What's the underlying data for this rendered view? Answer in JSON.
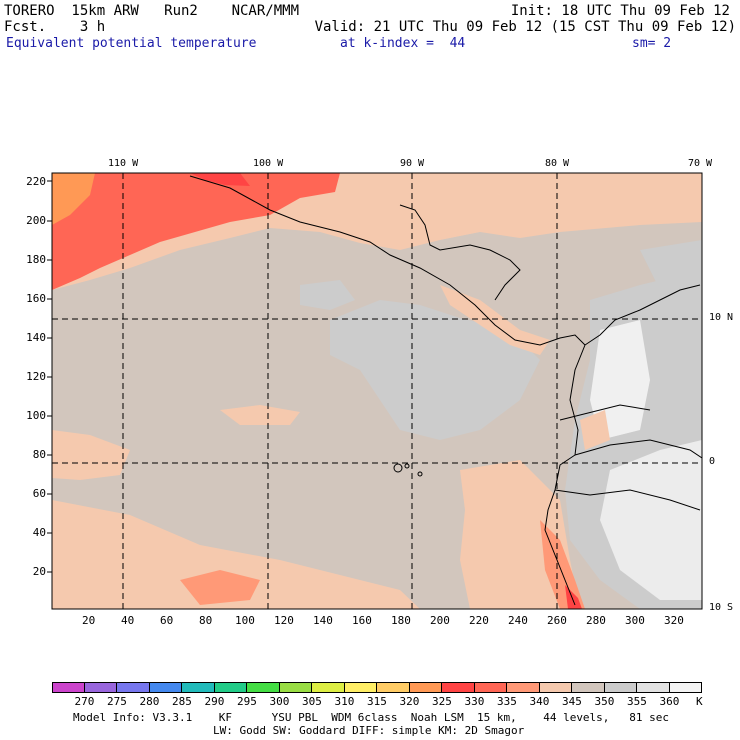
{
  "header": {
    "model": "TORERO  15km ARW   Run2    NCAR/MMM",
    "init": "Init: 18 UTC Thu 09 Feb 12",
    "fcst": "Fcst.    3 h",
    "valid": "Valid: 21 UTC Thu 09 Feb 12 (15 CST Thu 09 Feb 12)",
    "field": "Equivalent potential temperature",
    "level": "at k-index =  44",
    "sm": "sm= 2"
  },
  "map": {
    "lon_labels": [
      "110 W",
      "100 W",
      "90 W",
      "80 W",
      "70 W"
    ],
    "lat_labels": [
      "10 N",
      "0",
      "10 S"
    ],
    "y_ticks": [
      "220",
      "200",
      "180",
      "160",
      "140",
      "120",
      "100",
      "80",
      "60",
      "40",
      "20"
    ],
    "x_ticks": [
      "20",
      "40",
      "60",
      "80",
      "100",
      "120",
      "140",
      "160",
      "180",
      "200",
      "220",
      "240",
      "260",
      "280",
      "300",
      "320"
    ]
  },
  "colorbar": {
    "labels": [
      "270",
      "275",
      "280",
      "285",
      "290",
      "295",
      "300",
      "305",
      "310",
      "315",
      "320",
      "325",
      "330",
      "335",
      "340",
      "345",
      "350",
      "355",
      "360"
    ],
    "unit": "K",
    "colors": [
      "#cc44cc",
      "#9966dd",
      "#7777ee",
      "#4488ee",
      "#22bbbb",
      "#22cc88",
      "#44dd44",
      "#99dd44",
      "#ddee44",
      "#ffee66",
      "#ffcc66",
      "#ff9955",
      "#ff4444",
      "#ff6655",
      "#ff9977",
      "#f5c9ae",
      "#d2c6bd",
      "#cccccc",
      "#e2e2e2",
      "#f4f4f4"
    ]
  },
  "footer": {
    "line1": "Model Info: V3.3.1    KF      YSU PBL  WDM 6class  Noah LSM  15 km,    44 levels,   81 sec",
    "line2": "LW: Godd SW: Goddard DIFF: simple KM: 2D Smagor"
  }
}
